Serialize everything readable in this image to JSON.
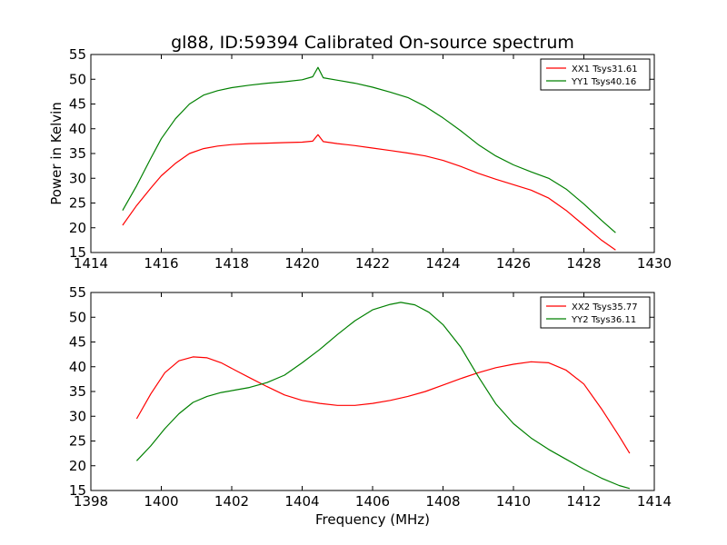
{
  "chart_data": {
    "type": "line",
    "title": "gl88, ID:59394 Calibrated On-source spectrum",
    "ylabel": "Power in Kelvin",
    "xlabel": "Frequency (MHz)",
    "colors": {
      "red": "#ff0000",
      "green": "#008000"
    },
    "panels": [
      {
        "xlim": [
          1414,
          1430
        ],
        "ylim": [
          15,
          55
        ],
        "xticks": [
          "1414",
          "1416",
          "1418",
          "1420",
          "1422",
          "1424",
          "1426",
          "1428",
          "1430"
        ],
        "yticks": [
          "15",
          "20",
          "25",
          "30",
          "35",
          "40",
          "45",
          "50",
          "55"
        ],
        "legend_position": "top-right",
        "series": [
          {
            "name": "XX1 Tsys31.61",
            "color": "#ff0000",
            "x": [
              1414.9,
              1415.3,
              1415.7,
              1416.0,
              1416.4,
              1416.8,
              1417.2,
              1417.6,
              1418.0,
              1418.5,
              1419.0,
              1419.5,
              1420.0,
              1420.3,
              1420.45,
              1420.6,
              1421.0,
              1421.5,
              1422.0,
              1422.5,
              1423.0,
              1423.5,
              1424.0,
              1424.5,
              1425.0,
              1425.5,
              1426.0,
              1426.5,
              1427.0,
              1427.5,
              1428.0,
              1428.5,
              1428.9
            ],
            "y": [
              20.5,
              24.5,
              28.0,
              30.5,
              33.0,
              35.0,
              36.0,
              36.5,
              36.8,
              37.0,
              37.1,
              37.2,
              37.3,
              37.5,
              38.8,
              37.4,
              37.0,
              36.6,
              36.1,
              35.6,
              35.1,
              34.5,
              33.6,
              32.4,
              31.0,
              29.8,
              28.7,
              27.6,
              26.0,
              23.5,
              20.5,
              17.5,
              15.5
            ]
          },
          {
            "name": "YY1 Tsys40.16",
            "color": "#008000",
            "x": [
              1414.9,
              1415.3,
              1415.7,
              1416.0,
              1416.4,
              1416.8,
              1417.2,
              1417.6,
              1418.0,
              1418.5,
              1419.0,
              1419.5,
              1420.0,
              1420.3,
              1420.45,
              1420.6,
              1421.0,
              1421.5,
              1422.0,
              1422.5,
              1423.0,
              1423.5,
              1424.0,
              1424.5,
              1425.0,
              1425.5,
              1426.0,
              1426.5,
              1427.0,
              1427.5,
              1428.0,
              1428.5,
              1428.9
            ],
            "y": [
              23.5,
              28.5,
              34.0,
              38.0,
              42.0,
              45.0,
              46.8,
              47.7,
              48.3,
              48.8,
              49.2,
              49.5,
              49.9,
              50.5,
              52.4,
              50.3,
              49.8,
              49.2,
              48.4,
              47.4,
              46.3,
              44.5,
              42.2,
              39.6,
              36.8,
              34.5,
              32.7,
              31.3,
              30.0,
              27.8,
              24.8,
              21.5,
              19.0
            ]
          }
        ]
      },
      {
        "xlim": [
          1398,
          1414
        ],
        "ylim": [
          15,
          55
        ],
        "xticks": [
          "1398",
          "1400",
          "1402",
          "1404",
          "1406",
          "1408",
          "1410",
          "1412",
          "1414"
        ],
        "yticks": [
          "15",
          "20",
          "25",
          "30",
          "35",
          "40",
          "45",
          "50",
          "55"
        ],
        "legend_position": "top-right",
        "series": [
          {
            "name": "XX2 Tsys35.77",
            "color": "#ff0000",
            "x": [
              1399.3,
              1399.7,
              1400.1,
              1400.5,
              1400.9,
              1401.3,
              1401.7,
              1402.1,
              1402.5,
              1403.0,
              1403.5,
              1404.0,
              1404.5,
              1405.0,
              1405.5,
              1406.0,
              1406.5,
              1407.0,
              1407.5,
              1408.0,
              1408.5,
              1409.0,
              1409.5,
              1410.0,
              1410.5,
              1411.0,
              1411.5,
              1412.0,
              1412.5,
              1413.0,
              1413.3
            ],
            "y": [
              29.5,
              34.5,
              38.8,
              41.2,
              42.0,
              41.8,
              40.8,
              39.3,
              37.8,
              36.0,
              34.3,
              33.2,
              32.6,
              32.2,
              32.2,
              32.6,
              33.2,
              34.0,
              35.0,
              36.3,
              37.6,
              38.8,
              39.8,
              40.5,
              41.0,
              40.8,
              39.3,
              36.5,
              31.5,
              26.0,
              22.5
            ]
          },
          {
            "name": "YY2 Tsys36.11",
            "color": "#008000",
            "x": [
              1399.3,
              1399.7,
              1400.1,
              1400.5,
              1400.9,
              1401.3,
              1401.7,
              1402.1,
              1402.5,
              1403.0,
              1403.5,
              1404.0,
              1404.5,
              1405.0,
              1405.5,
              1406.0,
              1406.5,
              1406.8,
              1407.2,
              1407.6,
              1408.0,
              1408.5,
              1409.0,
              1409.5,
              1410.0,
              1410.5,
              1411.0,
              1411.5,
              1412.0,
              1412.5,
              1413.0,
              1413.3
            ],
            "y": [
              21.0,
              24.0,
              27.5,
              30.5,
              32.8,
              34.0,
              34.8,
              35.3,
              35.8,
              36.8,
              38.3,
              40.8,
              43.5,
              46.5,
              49.3,
              51.5,
              52.6,
              53.0,
              52.5,
              51.0,
              48.5,
              44.0,
              38.0,
              32.5,
              28.5,
              25.6,
              23.3,
              21.3,
              19.3,
              17.5,
              16.0,
              15.4
            ]
          }
        ]
      }
    ]
  }
}
